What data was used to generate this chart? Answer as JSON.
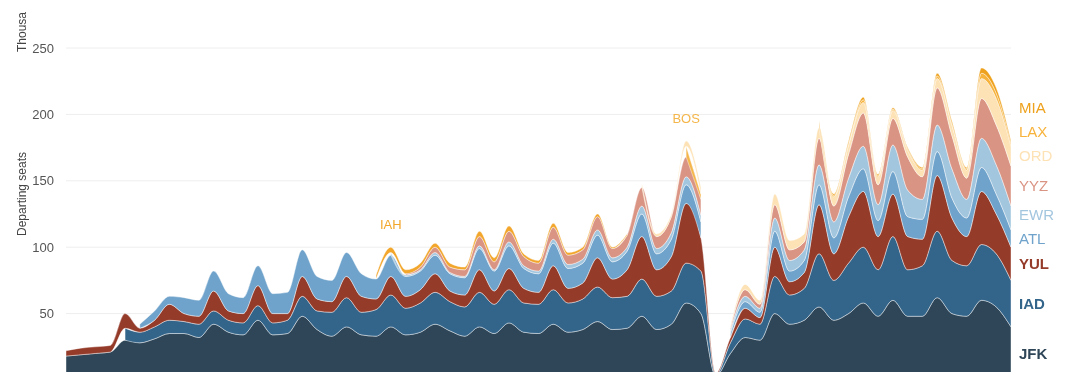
{
  "chart_data": {
    "type": "area",
    "stacked": true,
    "ylabel": "Departing seats",
    "annotations": [
      "Thousa"
    ],
    "categories": [
      null,
      null,
      null,
      null,
      null,
      null,
      null,
      null,
      null,
      null,
      null,
      null,
      null,
      null,
      null,
      null,
      null,
      null,
      null,
      null,
      null,
      null,
      null,
      null,
      null,
      null,
      null,
      null,
      null,
      null,
      null,
      null,
      null,
      null,
      null,
      null,
      null,
      null,
      null,
      null,
      null,
      null,
      null,
      null,
      null,
      null,
      null,
      null,
      null,
      null,
      null,
      null,
      null,
      null,
      null,
      null,
      null,
      null,
      null,
      null,
      null,
      null,
      null,
      null,
      null
    ],
    "ylim": [
      0,
      250
    ],
    "yticks": [
      50,
      100,
      150,
      200,
      250
    ],
    "grid": "y",
    "series": [
      {
        "name": "JFK",
        "color": "#2e4657",
        "values": [
          18,
          19,
          20,
          21,
          30,
          28,
          31,
          35,
          35,
          32,
          42,
          36,
          34,
          45,
          34,
          35,
          48,
          38,
          33,
          40,
          34,
          33,
          40,
          34,
          36,
          42,
          37,
          33,
          40,
          35,
          43,
          36,
          35,
          42,
          36,
          38,
          44,
          38,
          39,
          48,
          38,
          42,
          58,
          50,
          3,
          20,
          32,
          30,
          50,
          42,
          45,
          55,
          45,
          50,
          58,
          48,
          60,
          48,
          48,
          62,
          50,
          48,
          60,
          55,
          40
        ]
      },
      {
        "name": "IAD",
        "color": "#33648a",
        "values": [
          null,
          null,
          null,
          null,
          9,
          8,
          9,
          10,
          9,
          10,
          10,
          9,
          9,
          11,
          9,
          10,
          15,
          14,
          18,
          22,
          17,
          20,
          24,
          20,
          22,
          24,
          22,
          22,
          26,
          22,
          25,
          22,
          22,
          26,
          22,
          23,
          26,
          24,
          24,
          28,
          25,
          25,
          30,
          32,
          1,
          8,
          14,
          12,
          28,
          22,
          24,
          40,
          30,
          38,
          42,
          35,
          48,
          35,
          38,
          50,
          40,
          38,
          42,
          40,
          35
        ]
      },
      {
        "name": "YUL",
        "color": "#953b2a",
        "values": [
          4,
          5,
          5,
          5,
          11,
          3,
          5,
          12,
          6,
          6,
          15,
          7,
          7,
          15,
          7,
          5,
          15,
          9,
          8,
          16,
          12,
          8,
          14,
          9,
          10,
          14,
          8,
          9,
          17,
          10,
          16,
          11,
          9,
          18,
          11,
          12,
          22,
          14,
          20,
          32,
          20,
          26,
          45,
          25,
          1,
          4,
          8,
          5,
          22,
          10,
          12,
          37,
          20,
          35,
          42,
          25,
          32,
          25,
          20,
          42,
          32,
          22,
          40,
          30,
          25
        ]
      },
      {
        "name": "ATL",
        "color": "#6fa3cb",
        "values": [
          null,
          null,
          null,
          null,
          null,
          3,
          7,
          6,
          12,
          12,
          15,
          13,
          12,
          15,
          15,
          16,
          20,
          17,
          16,
          18,
          17,
          15,
          16,
          15,
          14,
          14,
          13,
          13,
          16,
          15,
          17,
          15,
          14,
          17,
          15,
          15,
          17,
          13,
          14,
          17,
          12,
          13,
          14,
          12,
          null,
          3,
          5,
          4,
          12,
          8,
          9,
          15,
          12,
          15,
          17,
          12,
          17,
          15,
          15,
          18,
          15,
          14,
          18,
          15,
          13
        ]
      },
      {
        "name": "EWR",
        "color": "#a3c6df",
        "values": [
          null,
          null,
          null,
          null,
          null,
          null,
          null,
          null,
          null,
          null,
          null,
          null,
          null,
          null,
          null,
          null,
          null,
          null,
          null,
          null,
          null,
          null,
          2,
          1,
          1,
          2,
          1,
          1,
          2,
          1,
          3,
          2,
          2,
          3,
          3,
          3,
          4,
          3,
          3,
          6,
          4,
          5,
          6,
          5,
          null,
          2,
          4,
          3,
          10,
          8,
          8,
          15,
          12,
          14,
          17,
          12,
          20,
          20,
          15,
          20,
          22,
          14,
          22,
          22,
          18
        ]
      },
      {
        "name": "YYZ",
        "color": "#da9484",
        "values": [
          null,
          null,
          null,
          null,
          null,
          null,
          null,
          null,
          null,
          null,
          null,
          null,
          null,
          null,
          null,
          null,
          null,
          null,
          null,
          null,
          null,
          null,
          null,
          1,
          2,
          4,
          4,
          5,
          7,
          6,
          8,
          7,
          6,
          9,
          7,
          7,
          10,
          7,
          9,
          14,
          9,
          12,
          15,
          12,
          null,
          2,
          5,
          3,
          10,
          8,
          6,
          20,
          12,
          18,
          25,
          15,
          20,
          25,
          17,
          28,
          25,
          16,
          30,
          30,
          30
        ]
      },
      {
        "name": "IAH",
        "color": "#f2a62b",
        "values": [
          null,
          null,
          null,
          null,
          null,
          null,
          null,
          null,
          null,
          null,
          null,
          null,
          null,
          null,
          null,
          null,
          null,
          null,
          null,
          null,
          null,
          3,
          4,
          3,
          3,
          3,
          3,
          2,
          4,
          3,
          4,
          2,
          2,
          3,
          2,
          2,
          2,
          1,
          1,
          null,
          null,
          null,
          null,
          null,
          null,
          null,
          null,
          null,
          null,
          null,
          null,
          null,
          null,
          null,
          null,
          null,
          null,
          null,
          null,
          null,
          null,
          null,
          null,
          null,
          null
        ]
      },
      {
        "name": "BOS",
        "color": "#f4b64a",
        "values": [
          null,
          null,
          null,
          null,
          null,
          null,
          null,
          null,
          null,
          null,
          null,
          null,
          null,
          null,
          null,
          null,
          null,
          null,
          null,
          null,
          null,
          null,
          null,
          null,
          null,
          null,
          null,
          null,
          null,
          null,
          null,
          null,
          null,
          null,
          null,
          null,
          null,
          null,
          null,
          null,
          null,
          null,
          8,
          4,
          null,
          null,
          null,
          null,
          null,
          null,
          null,
          null,
          null,
          null,
          null,
          null,
          null,
          null,
          null,
          null,
          null,
          null,
          null,
          null,
          null
        ]
      },
      {
        "name": "ORD",
        "color": "#fde2b6",
        "values": [
          null,
          null,
          null,
          null,
          null,
          null,
          null,
          null,
          null,
          null,
          null,
          null,
          null,
          null,
          null,
          null,
          null,
          null,
          null,
          null,
          null,
          null,
          null,
          null,
          null,
          null,
          null,
          null,
          null,
          null,
          null,
          null,
          null,
          null,
          null,
          null,
          null,
          null,
          null,
          3,
          2,
          2,
          4,
          5,
          null,
          1,
          4,
          3,
          8,
          7,
          6,
          8,
          7,
          7,
          8,
          6,
          6,
          5,
          5,
          7,
          8,
          6,
          15,
          20,
          15
        ]
      },
      {
        "name": "LAX",
        "color": "#f7b33c",
        "values": [
          null,
          null,
          null,
          null,
          null,
          null,
          null,
          null,
          null,
          null,
          null,
          null,
          null,
          null,
          null,
          null,
          null,
          null,
          null,
          null,
          null,
          null,
          null,
          null,
          null,
          null,
          null,
          null,
          null,
          null,
          null,
          null,
          null,
          null,
          null,
          null,
          null,
          null,
          null,
          null,
          null,
          null,
          null,
          null,
          null,
          null,
          null,
          null,
          null,
          null,
          null,
          2,
          1,
          1,
          2,
          1,
          1,
          1,
          1,
          2,
          1,
          1,
          4,
          4,
          2
        ]
      },
      {
        "name": "MIA",
        "color": "#eea11c",
        "values": [
          null,
          null,
          null,
          null,
          null,
          null,
          null,
          null,
          null,
          null,
          null,
          null,
          null,
          null,
          null,
          null,
          null,
          null,
          null,
          null,
          null,
          null,
          null,
          null,
          null,
          null,
          null,
          null,
          null,
          null,
          null,
          null,
          null,
          null,
          null,
          null,
          null,
          null,
          null,
          null,
          null,
          null,
          null,
          null,
          null,
          null,
          null,
          null,
          null,
          null,
          null,
          3,
          1,
          2,
          2,
          1,
          1,
          1,
          1,
          2,
          2,
          1,
          4,
          4,
          2
        ]
      }
    ]
  }
}
